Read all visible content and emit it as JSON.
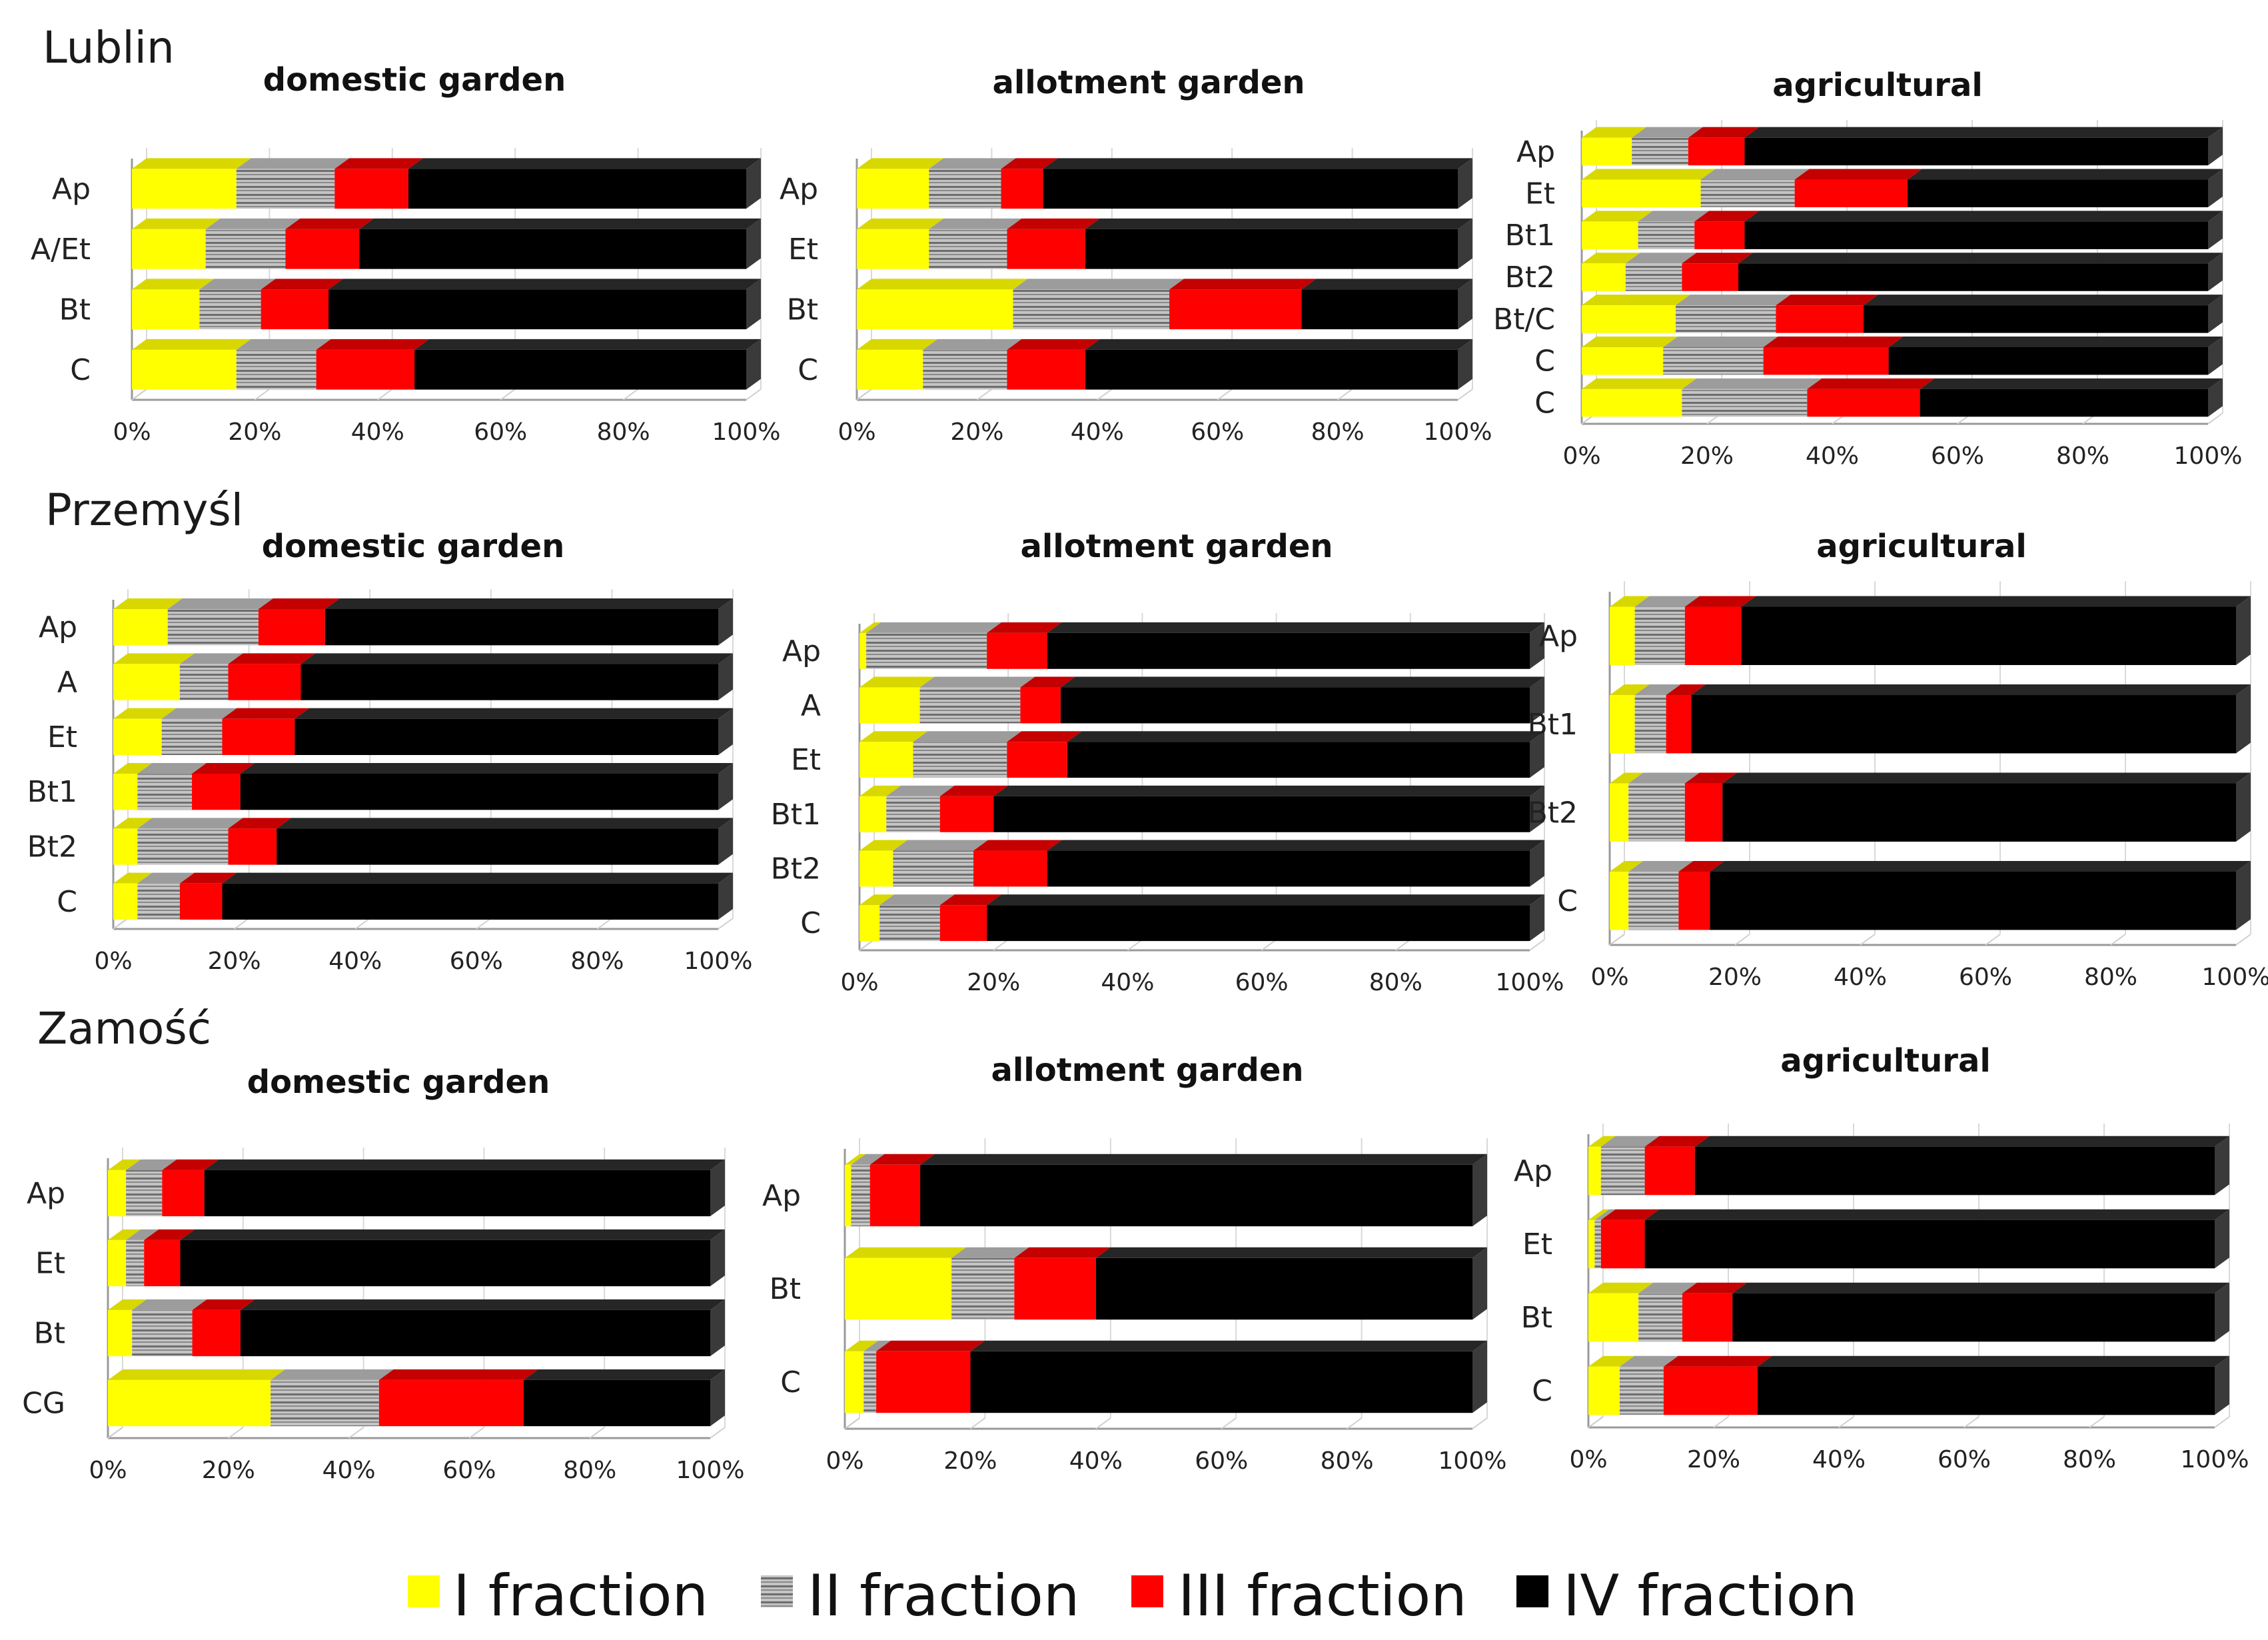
{
  "colors": {
    "I fraction": "#ffff00",
    "I fraction top": "#d8d800",
    "II fraction": "#b0b0b0",
    "II fraction stripe": "#777777",
    "III fraction": "#ff0000",
    "IV fraction": "#000000",
    "axis": "#9a9a9a"
  },
  "legend": [
    "I fraction",
    "II fraction",
    "III fraction",
    "IV fraction"
  ],
  "regions": [
    "Lublin",
    "Przemyśl",
    "Zamość"
  ],
  "chart_data": [
    {
      "type": "bar",
      "orientation": "horizontal",
      "stacked": "percent",
      "region": "Lublin",
      "title": "domestic garden",
      "categories": [
        "Ap",
        "A/Et",
        "Bt",
        "C"
      ],
      "series": [
        {
          "name": "I fraction",
          "values": [
            17,
            12,
            11,
            17
          ]
        },
        {
          "name": "II fraction",
          "values": [
            16,
            13,
            10,
            13
          ]
        },
        {
          "name": "III fraction",
          "values": [
            12,
            12,
            11,
            16
          ]
        },
        {
          "name": "IV fraction",
          "values": [
            55,
            63,
            68,
            54
          ]
        }
      ],
      "xticks": [
        "0%",
        "20%",
        "40%",
        "60%",
        "80%",
        "100%"
      ],
      "xlim": [
        0,
        100
      ]
    },
    {
      "type": "bar",
      "orientation": "horizontal",
      "stacked": "percent",
      "region": "Lublin",
      "title": "allotment garden",
      "categories": [
        "Ap",
        "Et",
        "Bt",
        "C"
      ],
      "series": [
        {
          "name": "I fraction",
          "values": [
            12,
            12,
            26,
            11
          ]
        },
        {
          "name": "II fraction",
          "values": [
            12,
            13,
            26,
            14
          ]
        },
        {
          "name": "III fraction",
          "values": [
            7,
            13,
            22,
            13
          ]
        },
        {
          "name": "IV fraction",
          "values": [
            69,
            62,
            26,
            62
          ]
        }
      ],
      "xticks": [
        "0%",
        "20%",
        "40%",
        "60%",
        "80%",
        "100%"
      ],
      "xlim": [
        0,
        100
      ]
    },
    {
      "type": "bar",
      "orientation": "horizontal",
      "stacked": "percent",
      "region": "Lublin",
      "title": "agricultural",
      "categories": [
        "Ap",
        "Et",
        "Bt1",
        "Bt2",
        "Bt/C",
        "C",
        "C"
      ],
      "series": [
        {
          "name": "I fraction",
          "values": [
            8,
            19,
            9,
            7,
            15,
            13,
            16
          ]
        },
        {
          "name": "II fraction",
          "values": [
            9,
            15,
            9,
            9,
            16,
            16,
            20
          ]
        },
        {
          "name": "III fraction",
          "values": [
            9,
            18,
            8,
            9,
            14,
            20,
            18
          ]
        },
        {
          "name": "IV fraction",
          "values": [
            74,
            48,
            74,
            75,
            55,
            51,
            46
          ]
        }
      ],
      "xticks": [
        "0%",
        "20%",
        "40%",
        "60%",
        "80%",
        "100%"
      ],
      "xlim": [
        0,
        100
      ]
    },
    {
      "type": "bar",
      "orientation": "horizontal",
      "stacked": "percent",
      "region": "Przemyśl",
      "title": "domestic garden",
      "categories": [
        "Ap",
        "A",
        "Et",
        "Bt1",
        "Bt2",
        "C"
      ],
      "series": [
        {
          "name": "I fraction",
          "values": [
            9,
            11,
            8,
            4,
            4,
            4
          ]
        },
        {
          "name": "II fraction",
          "values": [
            15,
            8,
            10,
            9,
            15,
            7
          ]
        },
        {
          "name": "III fraction",
          "values": [
            11,
            12,
            12,
            8,
            8,
            7
          ]
        },
        {
          "name": "IV fraction",
          "values": [
            65,
            69,
            70,
            79,
            73,
            82
          ]
        }
      ],
      "xticks": [
        "0%",
        "20%",
        "40%",
        "60%",
        "80%",
        "100%"
      ],
      "xlim": [
        0,
        100
      ]
    },
    {
      "type": "bar",
      "orientation": "horizontal",
      "stacked": "percent",
      "region": "Przemyśl",
      "title": "allotment garden",
      "categories": [
        "Ap",
        "A",
        "Et",
        "Bt1",
        "Bt2",
        "C"
      ],
      "series": [
        {
          "name": "I fraction",
          "values": [
            1,
            9,
            8,
            4,
            5,
            3
          ]
        },
        {
          "name": "II fraction",
          "values": [
            18,
            15,
            14,
            8,
            12,
            9
          ]
        },
        {
          "name": "III fraction",
          "values": [
            9,
            6,
            9,
            8,
            11,
            7
          ]
        },
        {
          "name": "IV fraction",
          "values": [
            72,
            70,
            69,
            80,
            72,
            81
          ]
        }
      ],
      "xticks": [
        "0%",
        "20%",
        "40%",
        "60%",
        "80%",
        "100%"
      ],
      "xlim": [
        0,
        100
      ]
    },
    {
      "type": "bar",
      "orientation": "horizontal",
      "stacked": "percent",
      "region": "Przemyśl",
      "title": "agricultural",
      "categories": [
        "Ap",
        "Bt1",
        "Bt2",
        "C"
      ],
      "series": [
        {
          "name": "I fraction",
          "values": [
            4,
            4,
            3,
            3
          ]
        },
        {
          "name": "II fraction",
          "values": [
            8,
            5,
            9,
            8
          ]
        },
        {
          "name": "III fraction",
          "values": [
            9,
            4,
            6,
            5
          ]
        },
        {
          "name": "IV fraction",
          "values": [
            79,
            87,
            82,
            84
          ]
        }
      ],
      "xticks": [
        "0%",
        "20%",
        "40%",
        "60%",
        "80%",
        "100%"
      ],
      "xlim": [
        0,
        100
      ]
    },
    {
      "type": "bar",
      "orientation": "horizontal",
      "stacked": "percent",
      "region": "Zamość",
      "title": "domestic garden",
      "categories": [
        "Ap",
        "Et",
        "Bt",
        "CG"
      ],
      "series": [
        {
          "name": "I fraction",
          "values": [
            3,
            3,
            4,
            27
          ]
        },
        {
          "name": "II fraction",
          "values": [
            6,
            3,
            10,
            18
          ]
        },
        {
          "name": "III fraction",
          "values": [
            7,
            6,
            8,
            24
          ]
        },
        {
          "name": "IV fraction",
          "values": [
            84,
            88,
            78,
            31
          ]
        }
      ],
      "xticks": [
        "0%",
        "20%",
        "40%",
        "60%",
        "80%",
        "100%"
      ],
      "xlim": [
        0,
        100
      ]
    },
    {
      "type": "bar",
      "orientation": "horizontal",
      "stacked": "percent",
      "region": "Zamość",
      "title": "allotment garden",
      "categories": [
        "Ap",
        "Bt",
        "C"
      ],
      "series": [
        {
          "name": "I fraction",
          "values": [
            1,
            17,
            3
          ]
        },
        {
          "name": "II fraction",
          "values": [
            3,
            10,
            2
          ]
        },
        {
          "name": "III fraction",
          "values": [
            8,
            13,
            15
          ]
        },
        {
          "name": "IV fraction",
          "values": [
            88,
            60,
            80
          ]
        }
      ],
      "xticks": [
        "0%",
        "20%",
        "40%",
        "60%",
        "80%",
        "100%"
      ],
      "xlim": [
        0,
        100
      ]
    },
    {
      "type": "bar",
      "orientation": "horizontal",
      "stacked": "percent",
      "region": "Zamość",
      "title": "agricultural",
      "categories": [
        "Ap",
        "Et",
        "Bt",
        "C"
      ],
      "series": [
        {
          "name": "I fraction",
          "values": [
            2,
            1,
            8,
            5
          ]
        },
        {
          "name": "II fraction",
          "values": [
            7,
            1,
            7,
            7
          ]
        },
        {
          "name": "III fraction",
          "values": [
            8,
            7,
            8,
            15
          ]
        },
        {
          "name": "IV fraction",
          "values": [
            83,
            91,
            77,
            73
          ]
        }
      ],
      "xticks": [
        "0%",
        "20%",
        "40%",
        "60%",
        "80%",
        "100%"
      ],
      "xlim": [
        0,
        100
      ]
    }
  ]
}
